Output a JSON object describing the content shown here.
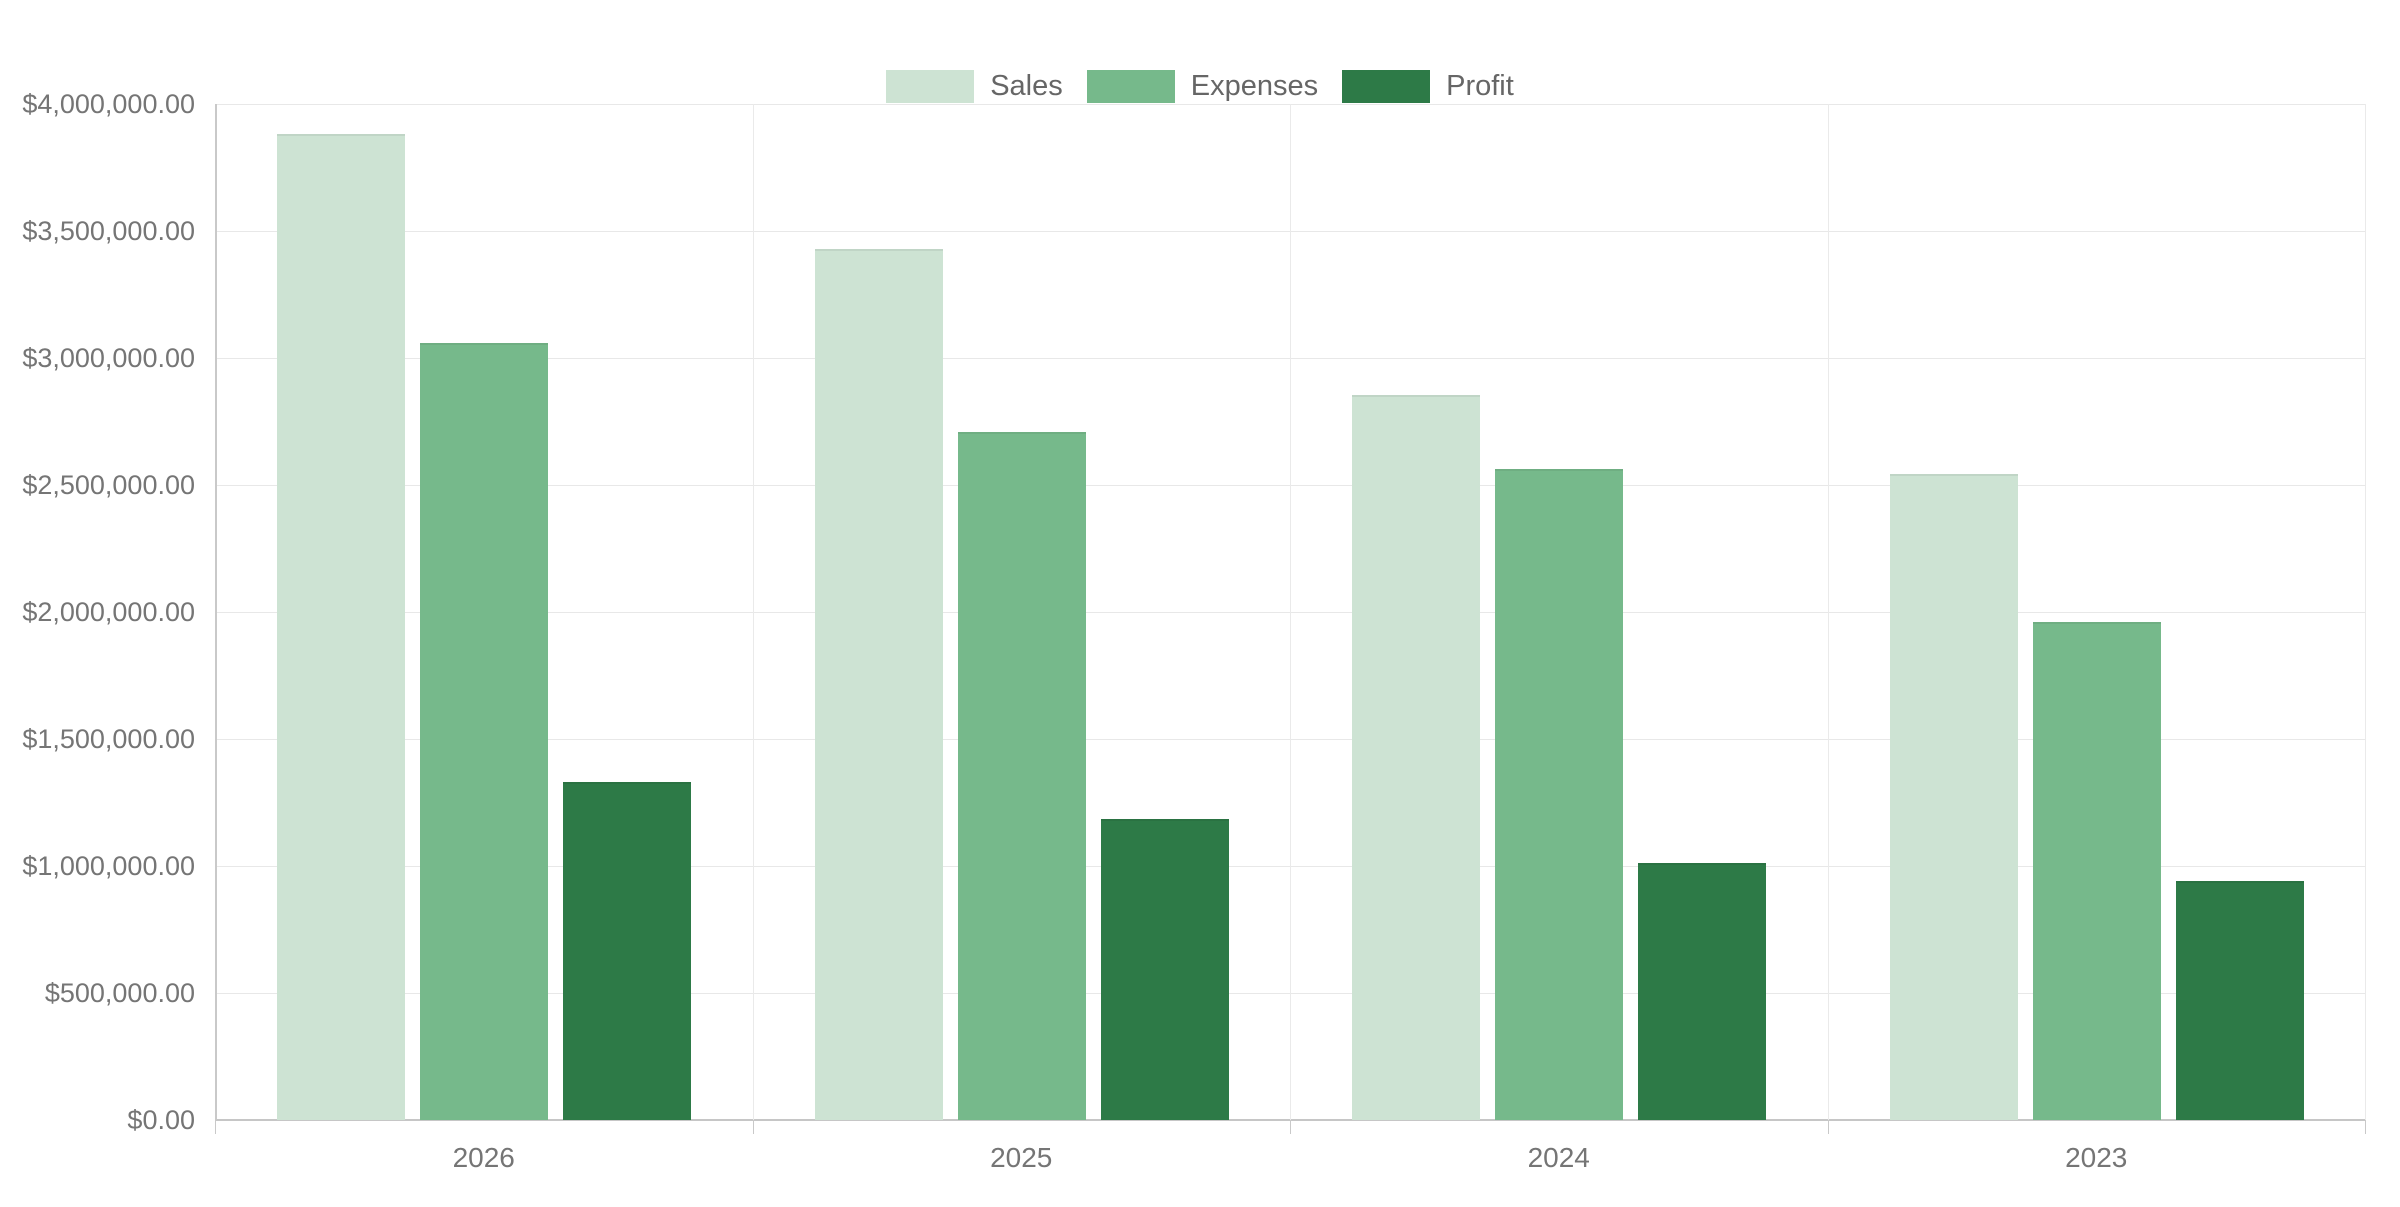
{
  "chart_data": {
    "type": "bar",
    "title": "",
    "xlabel": "",
    "ylabel": "",
    "categories": [
      "2026",
      "2025",
      "2024",
      "2023"
    ],
    "series": [
      {
        "name": "Sales",
        "color": "#cde3d3",
        "values": [
          3880000,
          3430000,
          2855000,
          2545000
        ]
      },
      {
        "name": "Expenses",
        "color": "#76b98b",
        "values": [
          3060000,
          2710000,
          2565000,
          1960000
        ]
      },
      {
        "name": "Profit",
        "color": "#2d7a47",
        "values": [
          1330000,
          1185000,
          1010000,
          940000
        ]
      }
    ],
    "ylim": [
      0,
      4000000
    ],
    "y_tick_step": 500000,
    "y_tick_labels": [
      "$4,000,000.00",
      "$3,500,000.00",
      "$3,000,000.00",
      "$2,500,000.00",
      "$2,000,000.00",
      "$1,500,000.00",
      "$1,000,000.00",
      "$500,000.00",
      "$0.00"
    ],
    "grid": true,
    "legend_position": "top"
  },
  "style": {
    "text_color": "#757575",
    "legend_text_color": "#666666",
    "gridline_color": "#e8e8e8",
    "axis_line_color": "#c6c6c6",
    "separator_color": "#eaeaea",
    "background": "#ffffff"
  }
}
